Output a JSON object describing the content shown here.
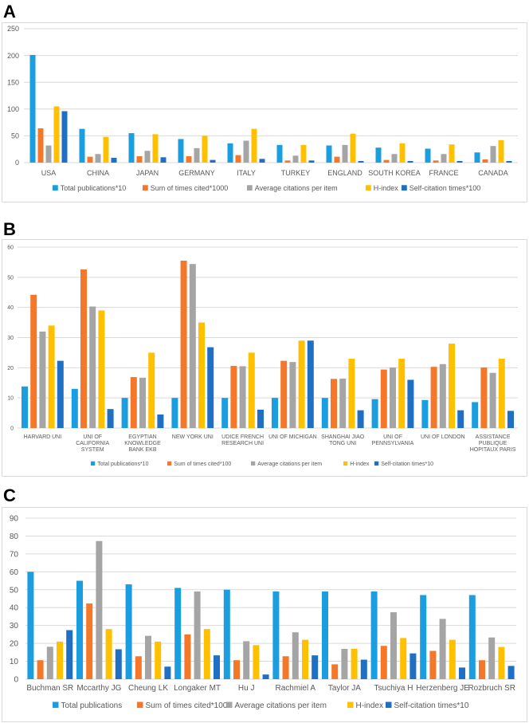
{
  "figure": {
    "panels": [
      "A",
      "B",
      "C"
    ]
  },
  "colors": {
    "total": "#1a9ee0",
    "sum": "#f4772a",
    "avg": "#a5a5a5",
    "hindex": "#ffc000",
    "self": "#1f6fc4",
    "grid": "#d9d9d9",
    "axis_text": "#595959"
  },
  "chart_data": [
    {
      "panel": "A",
      "type": "bar",
      "title": "",
      "xlabel": "",
      "ylabel": "",
      "ylim": [
        0,
        250
      ],
      "yticks": [
        "0",
        "50",
        "100",
        "150",
        "200",
        "250"
      ],
      "grid": true,
      "legend_position": "bottom",
      "categories": [
        "USA",
        "CHINA",
        "JAPAN",
        "GERMANY",
        "ITALY",
        "TURKEY",
        "ENGLAND",
        "SOUTH KOREA",
        "FRANCE",
        "CANADA"
      ],
      "series": [
        {
          "name": "Total publications*10",
          "color_key": "total",
          "values": [
            201,
            63,
            55,
            44,
            36,
            33,
            32,
            28,
            26,
            19
          ]
        },
        {
          "name": "Sum of times cited*1000",
          "color_key": "sum",
          "values": [
            64,
            11,
            12,
            12,
            14,
            4,
            11,
            5,
            4,
            6
          ]
        },
        {
          "name": "Average citations per item",
          "color_key": "avg",
          "values": [
            32,
            16,
            22,
            27,
            41,
            13,
            33,
            16,
            16,
            31
          ]
        },
        {
          "name": "H-index",
          "color_key": "hindex",
          "values": [
            105,
            48,
            53,
            50,
            63,
            33,
            54,
            36,
            34,
            42
          ]
        },
        {
          "name": "Self-citation times*100",
          "color_key": "self",
          "values": [
            96,
            9,
            10,
            5,
            7,
            4,
            3,
            3,
            3,
            3
          ]
        }
      ]
    },
    {
      "panel": "B",
      "type": "bar",
      "title": "",
      "xlabel": "",
      "ylabel": "",
      "ylim": [
        0,
        60
      ],
      "yticks": [
        "0",
        "10",
        "20",
        "30",
        "40",
        "50",
        "60"
      ],
      "grid": true,
      "legend_position": "bottom",
      "categories": [
        [
          "HARVARD UNI"
        ],
        [
          "UNI OF",
          "CALIFORNIA",
          "SYSTEM"
        ],
        [
          "EGYPTIAN",
          "KNOWLEDGE",
          "BANK EKB"
        ],
        [
          "NEW YORK UNI"
        ],
        [
          "UDICE FRENCH",
          "RESEARCH UNI"
        ],
        [
          "UNI OF MICHIGAN"
        ],
        [
          "SHANGHAI JIAO",
          "TONG UNI"
        ],
        [
          "UNI OF",
          "PENNSYLVANIA"
        ],
        [
          "UNI OF LONDON"
        ],
        [
          "ASSISTANCE",
          "PUBLIQUE",
          "HOPITAUX PARIS"
        ]
      ],
      "series": [
        {
          "name": "Total publications*10",
          "color_key": "total",
          "values": [
            13.8,
            13.0,
            10.0,
            10.0,
            10.0,
            10.0,
            10.0,
            9.6,
            9.3,
            8.6
          ]
        },
        {
          "name": "Sum of times cited*100",
          "color_key": "sum",
          "values": [
            44.2,
            52.6,
            16.9,
            55.5,
            20.6,
            22.3,
            16.3,
            19.4,
            20.3,
            20.1
          ]
        },
        {
          "name": "Average citations per item",
          "color_key": "avg",
          "values": [
            32.0,
            40.3,
            16.7,
            54.4,
            20.5,
            21.9,
            16.4,
            20.1,
            21.2,
            18.3
          ]
        },
        {
          "name": "H-index",
          "color_key": "hindex",
          "values": [
            34.0,
            39.0,
            25.0,
            35.0,
            25.0,
            29.0,
            23.0,
            23.0,
            28.0,
            23.0
          ]
        },
        {
          "name": "Self-citation times*10",
          "color_key": "self",
          "values": [
            22.3,
            6.3,
            4.5,
            26.8,
            6.1,
            29.0,
            5.9,
            16.0,
            5.9,
            5.7
          ]
        }
      ]
    },
    {
      "panel": "C",
      "type": "bar",
      "title": "",
      "xlabel": "",
      "ylabel": "",
      "ylim": [
        0,
        90
      ],
      "yticks": [
        "0",
        "10",
        "20",
        "30",
        "40",
        "50",
        "60",
        "70",
        "80",
        "90"
      ],
      "grid": true,
      "legend_position": "bottom",
      "categories": [
        "Buchman SR",
        "Mccarthy JG",
        "Cheung LK",
        "Longaker MT",
        "Hu J",
        "Rachmiel A",
        "Taylor JA",
        "Tsuchiya H",
        "Herzenberg JE",
        "Rozbruch SR"
      ],
      "series": [
        {
          "name": "Total publications",
          "color_key": "total",
          "values": [
            60,
            55,
            53,
            51,
            50,
            49,
            49,
            49,
            47,
            47
          ]
        },
        {
          "name": "Sum of times cited*100",
          "color_key": "sum",
          "values": [
            10.6,
            42.3,
            12.8,
            25.0,
            10.6,
            12.8,
            8.3,
            18.6,
            15.8,
            10.6
          ]
        },
        {
          "name": "Average citations per item",
          "color_key": "avg",
          "values": [
            18.1,
            77.2,
            24.2,
            49.0,
            21.2,
            26.2,
            16.9,
            37.4,
            33.7,
            23.3
          ]
        },
        {
          "name": "H-index",
          "color_key": "hindex",
          "values": [
            21,
            28,
            21,
            28,
            19,
            22,
            17,
            23,
            22,
            18
          ]
        },
        {
          "name": "Self-citation times*10",
          "color_key": "self",
          "values": [
            27.4,
            16.7,
            7.0,
            13.3,
            2.6,
            13.3,
            10.9,
            14.4,
            6.5,
            7.4
          ]
        }
      ]
    }
  ]
}
